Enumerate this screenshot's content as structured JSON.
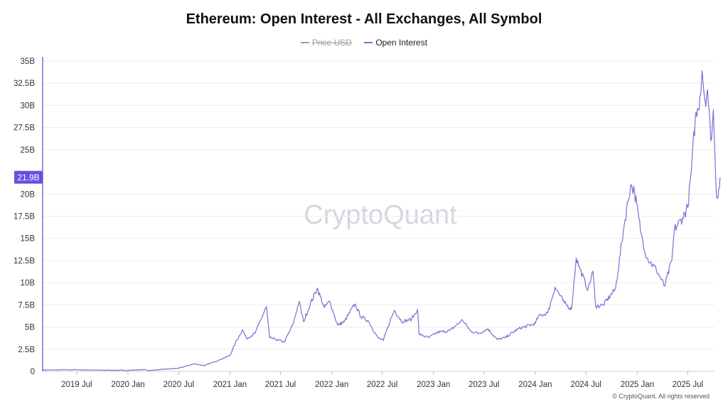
{
  "chart_data": {
    "type": "line",
    "title": "Ethereum: Open Interest - All Exchanges, All Symbol",
    "legend": [
      {
        "name": "Price USD",
        "color": "#9e9e9e",
        "visible": false
      },
      {
        "name": "Open Interest",
        "color": "#7b6fd6",
        "visible": true
      }
    ],
    "y_ticks": [
      "0",
      "2.5B",
      "5B",
      "7.5B",
      "10B",
      "12.5B",
      "15B",
      "17.5B",
      "20B",
      "25B",
      "27.5B",
      "30B",
      "32.5B",
      "35B"
    ],
    "y_tick_values": [
      0,
      2.5,
      5,
      7.5,
      10,
      12.5,
      15,
      17.5,
      20,
      25,
      27.5,
      30,
      32.5,
      35
    ],
    "ylim": [
      0,
      35
    ],
    "y_unit": "B",
    "x_ticks": [
      "2019 Jul",
      "2020 Jan",
      "2020 Jul",
      "2021 Jan",
      "2021 Jul",
      "2022 Jan",
      "2022 Jul",
      "2023 Jan",
      "2023 Jul",
      "2024 Jan",
      "2024 Jul",
      "2025 Jan",
      "2025 Jul"
    ],
    "x_tick_dates": [
      "2019-07-01",
      "2020-01-01",
      "2020-07-01",
      "2021-01-01",
      "2021-07-01",
      "2022-01-01",
      "2022-07-01",
      "2023-01-01",
      "2023-07-01",
      "2024-01-01",
      "2024-07-01",
      "2025-01-01",
      "2025-07-01"
    ],
    "xlim": [
      "2019-03-01",
      "2025-10-05"
    ],
    "current_value_label": "21.9B",
    "watermark": "CryptoQuant",
    "copyright": "© CryptoQuant. All rights reserved",
    "grid": true,
    "legend_position": "top-center",
    "series": [
      {
        "name": "Open Interest",
        "color": "#7b6fd6",
        "points": [
          [
            "2019-03-01",
            0.15
          ],
          [
            "2019-07-01",
            0.18
          ],
          [
            "2019-10-01",
            0.13
          ],
          [
            "2020-01-01",
            0.12
          ],
          [
            "2020-03-01",
            0.2
          ],
          [
            "2020-03-15",
            0.1
          ],
          [
            "2020-07-01",
            0.35
          ],
          [
            "2020-08-25",
            0.85
          ],
          [
            "2020-10-01",
            0.65
          ],
          [
            "2020-11-25",
            1.3
          ],
          [
            "2021-01-01",
            1.8
          ],
          [
            "2021-01-20",
            3.2
          ],
          [
            "2021-02-15",
            4.7
          ],
          [
            "2021-03-01",
            3.7
          ],
          [
            "2021-04-01",
            4.3
          ],
          [
            "2021-05-12",
            7.3
          ],
          [
            "2021-05-23",
            3.8
          ],
          [
            "2021-06-15",
            3.6
          ],
          [
            "2021-07-15",
            3.3
          ],
          [
            "2021-08-15",
            5.3
          ],
          [
            "2021-09-06",
            7.9
          ],
          [
            "2021-09-22",
            5.6
          ],
          [
            "2021-10-15",
            7.5
          ],
          [
            "2021-11-10",
            9.4
          ],
          [
            "2021-12-05",
            7.2
          ],
          [
            "2021-12-25",
            7.9
          ],
          [
            "2022-01-22",
            5.2
          ],
          [
            "2022-02-15",
            5.6
          ],
          [
            "2022-03-25",
            7.6
          ],
          [
            "2022-04-15",
            6.2
          ],
          [
            "2022-05-12",
            5.7
          ],
          [
            "2022-06-15",
            3.8
          ],
          [
            "2022-07-05",
            3.5
          ],
          [
            "2022-07-28",
            5.6
          ],
          [
            "2022-08-14",
            6.9
          ],
          [
            "2022-09-10",
            5.6
          ],
          [
            "2022-10-15",
            5.9
          ],
          [
            "2022-11-05",
            7.0
          ],
          [
            "2022-11-10",
            4.2
          ],
          [
            "2022-12-15",
            3.8
          ],
          [
            "2023-01-15",
            4.4
          ],
          [
            "2023-03-01",
            4.6
          ],
          [
            "2023-04-15",
            5.8
          ],
          [
            "2023-05-15",
            4.5
          ],
          [
            "2023-06-15",
            4.3
          ],
          [
            "2023-07-15",
            4.8
          ],
          [
            "2023-08-17",
            3.6
          ],
          [
            "2023-09-15",
            3.8
          ],
          [
            "2023-11-01",
            4.8
          ],
          [
            "2024-01-01",
            5.4
          ],
          [
            "2024-01-12",
            6.2
          ],
          [
            "2024-02-15",
            6.6
          ],
          [
            "2024-03-12",
            9.5
          ],
          [
            "2024-04-15",
            7.7
          ],
          [
            "2024-05-10",
            7.0
          ],
          [
            "2024-05-27",
            12.8
          ],
          [
            "2024-06-10",
            11.5
          ],
          [
            "2024-07-08",
            9.2
          ],
          [
            "2024-07-26",
            11.3
          ],
          [
            "2024-08-05",
            7.3
          ],
          [
            "2024-09-01",
            7.5
          ],
          [
            "2024-10-15",
            9.3
          ],
          [
            "2024-11-15",
            16.5
          ],
          [
            "2024-12-08",
            21.0
          ],
          [
            "2024-12-22",
            20.3
          ],
          [
            "2025-01-15",
            15.5
          ],
          [
            "2025-02-05",
            12.8
          ],
          [
            "2025-03-10",
            11.5
          ],
          [
            "2025-04-09",
            9.6
          ],
          [
            "2025-05-05",
            12.5
          ],
          [
            "2025-05-14",
            16.0
          ],
          [
            "2025-06-12",
            17.3
          ],
          [
            "2025-07-01",
            18.5
          ],
          [
            "2025-07-15",
            23.0
          ],
          [
            "2025-07-28",
            28.5
          ],
          [
            "2025-08-08",
            29.5
          ],
          [
            "2025-08-22",
            33.9
          ],
          [
            "2025-09-01",
            30.5
          ],
          [
            "2025-09-10",
            31.8
          ],
          [
            "2025-09-22",
            26.0
          ],
          [
            "2025-10-01",
            29.5
          ],
          [
            "2025-10-10",
            21.0
          ],
          [
            "2025-10-15",
            19.5
          ],
          [
            "2025-10-25",
            21.9
          ]
        ]
      }
    ]
  }
}
